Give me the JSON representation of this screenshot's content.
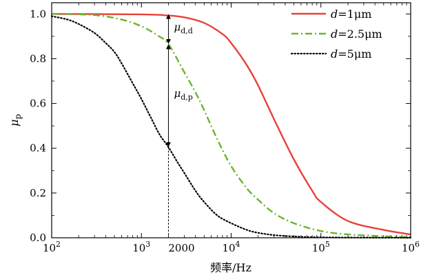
{
  "chart_data": {
    "type": "line",
    "xscale": "log",
    "xlim": [
      100,
      1000000
    ],
    "ylim": [
      0,
      1.05
    ],
    "xlabel": "频率/Hz",
    "ylabel": {
      "symbol": "μ",
      "subscript": "p"
    },
    "xticks": [
      {
        "value": 100,
        "base": "10",
        "exp": "2"
      },
      {
        "value": 1000,
        "base": "10",
        "exp": "3"
      },
      {
        "value": 10000,
        "base": "10",
        "exp": "4"
      },
      {
        "value": 100000,
        "base": "10",
        "exp": "5"
      },
      {
        "value": 1000000,
        "base": "10",
        "exp": "6"
      }
    ],
    "extra_xtick": {
      "value": 2000,
      "label": "2000"
    },
    "yticks": [
      {
        "value": 0.0,
        "label": "0.0"
      },
      {
        "value": 0.2,
        "label": "0.2"
      },
      {
        "value": 0.4,
        "label": "0.4"
      },
      {
        "value": 0.6,
        "label": "0.6"
      },
      {
        "value": 0.8,
        "label": "0.8"
      },
      {
        "value": 1.0,
        "label": "1.0"
      }
    ],
    "series": [
      {
        "name": "d=1μm",
        "italic": "d",
        "rest": "=1μm",
        "color": "#e8403a",
        "dash": "solid",
        "x": [
          100,
          1000,
          2000,
          3000,
          5000,
          8000,
          10000,
          15000,
          20000,
          30000,
          50000,
          80000,
          100000,
          200000,
          500000,
          1000000
        ],
        "y": [
          1.0,
          0.998,
          0.993,
          0.985,
          0.96,
          0.91,
          0.87,
          0.77,
          0.68,
          0.53,
          0.35,
          0.21,
          0.16,
          0.075,
          0.035,
          0.015
        ]
      },
      {
        "name": "d=2.5μm",
        "italic": "d",
        "rest": "=2.5μm",
        "color": "#6ab42d",
        "dash": "dashdot",
        "x": [
          100,
          300,
          600,
          1000,
          1500,
          2000,
          3000,
          4000,
          5000,
          7000,
          10000,
          15000,
          20000,
          30000,
          50000,
          100000,
          200000,
          500000,
          1000000
        ],
        "y": [
          1.0,
          0.995,
          0.975,
          0.945,
          0.905,
          0.865,
          0.74,
          0.65,
          0.57,
          0.44,
          0.32,
          0.22,
          0.17,
          0.11,
          0.065,
          0.03,
          0.015,
          0.007,
          0.003
        ]
      },
      {
        "name": "d=5μm",
        "italic": "d",
        "rest": "=5μm",
        "color": "#000000",
        "dash": "dotted",
        "x": [
          100,
          150,
          200,
          300,
          400,
          500,
          600,
          800,
          1000,
          1300,
          1600,
          2000,
          2500,
          3000,
          4000,
          5000,
          7000,
          10000,
          15000,
          20000,
          30000,
          50000,
          100000,
          1000000
        ],
        "y": [
          0.99,
          0.975,
          0.955,
          0.915,
          0.87,
          0.83,
          0.78,
          0.69,
          0.62,
          0.53,
          0.46,
          0.405,
          0.34,
          0.29,
          0.21,
          0.16,
          0.1,
          0.065,
          0.035,
          0.022,
          0.012,
          0.006,
          0.002,
          0.0
        ]
      }
    ],
    "legend_position": "top-right",
    "annotations": {
      "x": 2000,
      "levels": [
        1.0,
        0.865,
        0.405
      ],
      "labels": [
        {
          "symbol": "μ",
          "sub": "d,d"
        },
        {
          "symbol": "μ",
          "sub": "d,p"
        }
      ]
    }
  }
}
